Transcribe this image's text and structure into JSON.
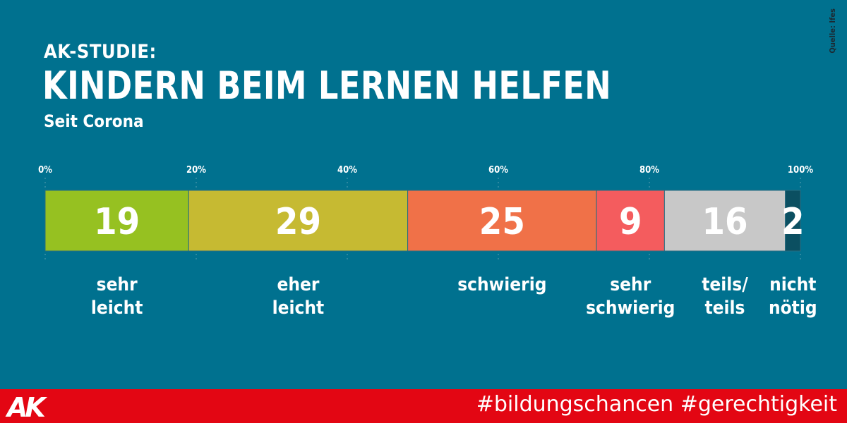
{
  "header": {
    "kicker": "AK-STUDIE:",
    "title": "KINDERN BEIM LERNEN HELFEN",
    "subtitle": "Seit Corona",
    "source": "Quelle: Ifes"
  },
  "footer": {
    "logo": "AK",
    "hashtags": "#bildungschancen #gerechtigkeit"
  },
  "chart_data": {
    "type": "bar",
    "stacked": true,
    "orientation": "horizontal",
    "title": "KINDERN BEIM LERNEN HELFEN",
    "subtitle": "Seit Corona",
    "xlim": [
      0,
      100
    ],
    "ticks": [
      0,
      20,
      40,
      60,
      80,
      100
    ],
    "tick_labels": [
      "0%",
      "20%",
      "40%",
      "60%",
      "80%",
      "100%"
    ],
    "segments": [
      {
        "value": 19,
        "label": [
          "sehr",
          "leicht"
        ],
        "color": "#96c121"
      },
      {
        "value": 29,
        "label": [
          "eher",
          "leicht"
        ],
        "color": "#c6ba32"
      },
      {
        "value": 25,
        "label": [
          "schwierig"
        ],
        "color": "#f07148"
      },
      {
        "value": 9,
        "label": [
          "sehr",
          "schwierig"
        ],
        "color": "#f45c5e"
      },
      {
        "value": 16,
        "label": [
          "teils/",
          "teils"
        ],
        "color": "#c8c8c8"
      },
      {
        "value": 2,
        "label": [
          "nicht",
          "nötig"
        ],
        "color": "#0b4f61"
      }
    ],
    "grid": true,
    "legend": "none"
  }
}
